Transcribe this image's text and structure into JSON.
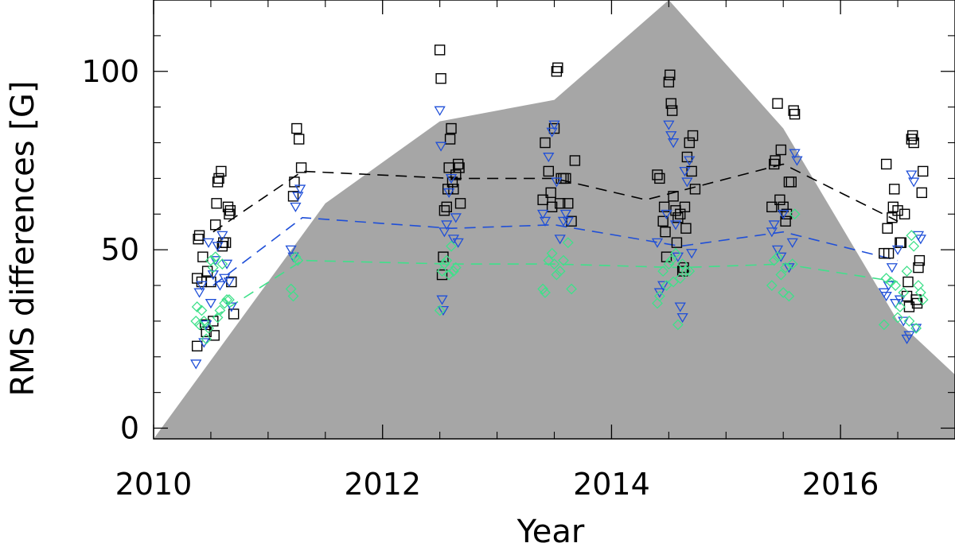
{
  "chart_data": {
    "type": "scatter",
    "title": "",
    "xlabel": "Year",
    "ylabel": "RMS differences [G]",
    "xlim": [
      2010,
      2017.0
    ],
    "ylim": [
      -3,
      120
    ],
    "x_ticks": [
      2010,
      2012,
      2014,
      2016
    ],
    "x_tick_labels": [
      "2010",
      "2012",
      "2014",
      "2016"
    ],
    "x_minor_ticks": [
      2010.5,
      2011,
      2011.5,
      2012.5,
      2013,
      2013.5,
      2014.5,
      2015,
      2015.5,
      2016.5
    ],
    "y_ticks": [
      0,
      50,
      100
    ],
    "y_tick_labels": [
      "0",
      "50",
      "100"
    ],
    "y_minor_ticks": [
      10,
      20,
      30,
      40,
      60,
      70,
      80,
      90,
      110
    ],
    "grid": false,
    "legend": "none",
    "background_area": {
      "color": "#a6a6a6",
      "x": [
        2010.0,
        2011.5,
        2012.5,
        2013.5,
        2014.5,
        2015.5,
        2016.5,
        2017.0
      ],
      "y": [
        -3,
        63,
        86,
        92,
        120,
        84,
        30,
        15
      ]
    },
    "series": [
      {
        "marker": "square",
        "color": "#000000",
        "points": [
          [
            2010.38,
            23
          ],
          [
            2010.38,
            42
          ],
          [
            2010.39,
            53
          ],
          [
            2010.4,
            54
          ],
          [
            2010.42,
            41
          ],
          [
            2010.43,
            48
          ],
          [
            2010.45,
            29
          ],
          [
            2010.46,
            27
          ],
          [
            2010.47,
            44
          ],
          [
            2010.5,
            41
          ],
          [
            2010.52,
            30
          ],
          [
            2010.53,
            26
          ],
          [
            2010.54,
            57
          ],
          [
            2010.55,
            63
          ],
          [
            2010.56,
            69
          ],
          [
            2010.57,
            70
          ],
          [
            2010.59,
            72
          ],
          [
            2010.6,
            51
          ],
          [
            2010.61,
            52
          ],
          [
            2010.63,
            52
          ],
          [
            2010.65,
            62
          ],
          [
            2010.66,
            60
          ],
          [
            2010.67,
            61
          ],
          [
            2010.68,
            41
          ],
          [
            2010.7,
            32
          ],
          [
            2011.22,
            65
          ],
          [
            2011.23,
            69
          ],
          [
            2011.25,
            84
          ],
          [
            2011.27,
            81
          ],
          [
            2011.29,
            73
          ],
          [
            2012.5,
            106
          ],
          [
            2012.51,
            98
          ],
          [
            2012.52,
            43
          ],
          [
            2012.53,
            48
          ],
          [
            2012.54,
            61
          ],
          [
            2012.56,
            62
          ],
          [
            2012.57,
            67
          ],
          [
            2012.58,
            73
          ],
          [
            2012.59,
            81
          ],
          [
            2012.6,
            84
          ],
          [
            2012.61,
            69
          ],
          [
            2012.62,
            67
          ],
          [
            2012.64,
            71
          ],
          [
            2012.66,
            74
          ],
          [
            2012.67,
            73
          ],
          [
            2012.68,
            63
          ],
          [
            2013.4,
            64
          ],
          [
            2013.42,
            80
          ],
          [
            2013.45,
            72
          ],
          [
            2013.47,
            66
          ],
          [
            2013.48,
            62
          ],
          [
            2013.5,
            84
          ],
          [
            2013.52,
            100
          ],
          [
            2013.53,
            101
          ],
          [
            2013.55,
            63
          ],
          [
            2013.56,
            70
          ],
          [
            2013.58,
            70
          ],
          [
            2013.6,
            70
          ],
          [
            2013.62,
            63
          ],
          [
            2013.65,
            58
          ],
          [
            2013.68,
            75
          ],
          [
            2014.4,
            71
          ],
          [
            2014.42,
            70
          ],
          [
            2014.45,
            58
          ],
          [
            2014.46,
            62
          ],
          [
            2014.47,
            55
          ],
          [
            2014.48,
            48
          ],
          [
            2014.5,
            97
          ],
          [
            2014.51,
            99
          ],
          [
            2014.52,
            91
          ],
          [
            2014.53,
            89
          ],
          [
            2014.54,
            65
          ],
          [
            2014.56,
            61
          ],
          [
            2014.57,
            52
          ],
          [
            2014.58,
            59
          ],
          [
            2014.6,
            60
          ],
          [
            2014.62,
            44
          ],
          [
            2014.63,
            45
          ],
          [
            2014.64,
            62
          ],
          [
            2014.65,
            56
          ],
          [
            2014.66,
            76
          ],
          [
            2014.68,
            80
          ],
          [
            2014.7,
            72
          ],
          [
            2014.71,
            82
          ],
          [
            2014.73,
            67
          ],
          [
            2015.4,
            62
          ],
          [
            2015.42,
            74
          ],
          [
            2015.43,
            75
          ],
          [
            2015.45,
            91
          ],
          [
            2015.47,
            64
          ],
          [
            2015.48,
            78
          ],
          [
            2015.5,
            62
          ],
          [
            2015.52,
            58
          ],
          [
            2015.53,
            60
          ],
          [
            2015.55,
            69
          ],
          [
            2015.57,
            69
          ],
          [
            2015.59,
            89
          ],
          [
            2015.6,
            88
          ],
          [
            2016.38,
            49
          ],
          [
            2016.4,
            74
          ],
          [
            2016.41,
            56
          ],
          [
            2016.42,
            49
          ],
          [
            2016.45,
            59
          ],
          [
            2016.46,
            62
          ],
          [
            2016.47,
            67
          ],
          [
            2016.5,
            61
          ],
          [
            2016.52,
            52
          ],
          [
            2016.53,
            52
          ],
          [
            2016.56,
            60
          ],
          [
            2016.58,
            37
          ],
          [
            2016.59,
            41
          ],
          [
            2016.6,
            34
          ],
          [
            2016.62,
            81
          ],
          [
            2016.63,
            82
          ],
          [
            2016.64,
            80
          ],
          [
            2016.66,
            36
          ],
          [
            2016.67,
            35
          ],
          [
            2016.68,
            45
          ],
          [
            2016.69,
            47
          ],
          [
            2016.71,
            66
          ],
          [
            2016.72,
            72
          ]
        ]
      },
      {
        "marker": "triangle-down",
        "color": "#1f4fd8",
        "points": [
          [
            2010.37,
            18
          ],
          [
            2010.4,
            38
          ],
          [
            2010.42,
            40
          ],
          [
            2010.44,
            24
          ],
          [
            2010.46,
            29
          ],
          [
            2010.48,
            52
          ],
          [
            2010.5,
            35
          ],
          [
            2010.52,
            43
          ],
          [
            2010.54,
            47
          ],
          [
            2010.56,
            51
          ],
          [
            2010.58,
            40
          ],
          [
            2010.6,
            54
          ],
          [
            2010.62,
            42
          ],
          [
            2010.64,
            46
          ],
          [
            2010.66,
            41
          ],
          [
            2010.68,
            34
          ],
          [
            2011.2,
            50
          ],
          [
            2011.22,
            48
          ],
          [
            2011.24,
            62
          ],
          [
            2011.26,
            65
          ],
          [
            2011.28,
            67
          ],
          [
            2012.5,
            89
          ],
          [
            2012.51,
            79
          ],
          [
            2012.52,
            36
          ],
          [
            2012.53,
            33
          ],
          [
            2012.54,
            55
          ],
          [
            2012.56,
            57
          ],
          [
            2012.58,
            66
          ],
          [
            2012.6,
            70
          ],
          [
            2012.62,
            53
          ],
          [
            2012.64,
            59
          ],
          [
            2012.66,
            52
          ],
          [
            2013.4,
            60
          ],
          [
            2013.42,
            58
          ],
          [
            2013.45,
            76
          ],
          [
            2013.48,
            83
          ],
          [
            2013.5,
            85
          ],
          [
            2013.52,
            69
          ],
          [
            2013.55,
            53
          ],
          [
            2013.58,
            58
          ],
          [
            2013.6,
            60
          ],
          [
            2013.62,
            58
          ],
          [
            2014.4,
            52
          ],
          [
            2014.42,
            38
          ],
          [
            2014.45,
            40
          ],
          [
            2014.48,
            60
          ],
          [
            2014.5,
            85
          ],
          [
            2014.52,
            82
          ],
          [
            2014.54,
            80
          ],
          [
            2014.56,
            57
          ],
          [
            2014.58,
            48
          ],
          [
            2014.6,
            34
          ],
          [
            2014.62,
            31
          ],
          [
            2014.64,
            72
          ],
          [
            2014.66,
            69
          ],
          [
            2014.68,
            75
          ],
          [
            2014.7,
            49
          ],
          [
            2015.4,
            55
          ],
          [
            2015.42,
            57
          ],
          [
            2015.45,
            50
          ],
          [
            2015.48,
            48
          ],
          [
            2015.5,
            60
          ],
          [
            2015.55,
            45
          ],
          [
            2015.58,
            52
          ],
          [
            2015.6,
            77
          ],
          [
            2015.62,
            75
          ],
          [
            2016.38,
            38
          ],
          [
            2016.4,
            37
          ],
          [
            2016.42,
            40
          ],
          [
            2016.45,
            45
          ],
          [
            2016.48,
            35
          ],
          [
            2016.5,
            50
          ],
          [
            2016.52,
            36
          ],
          [
            2016.55,
            30
          ],
          [
            2016.58,
            25
          ],
          [
            2016.6,
            26
          ],
          [
            2016.62,
            71
          ],
          [
            2016.64,
            69
          ],
          [
            2016.66,
            28
          ],
          [
            2016.68,
            54
          ],
          [
            2016.7,
            53
          ]
        ]
      },
      {
        "marker": "diamond",
        "color": "#3fe08a",
        "points": [
          [
            2010.37,
            30
          ],
          [
            2010.38,
            34
          ],
          [
            2010.4,
            29
          ],
          [
            2010.42,
            33
          ],
          [
            2010.44,
            30
          ],
          [
            2010.46,
            25
          ],
          [
            2010.48,
            28
          ],
          [
            2010.5,
            47
          ],
          [
            2010.52,
            45
          ],
          [
            2010.54,
            48
          ],
          [
            2010.56,
            31
          ],
          [
            2010.58,
            33
          ],
          [
            2010.6,
            46
          ],
          [
            2010.62,
            35
          ],
          [
            2010.64,
            36
          ],
          [
            2010.66,
            36
          ],
          [
            2011.2,
            39
          ],
          [
            2011.22,
            37
          ],
          [
            2011.24,
            48
          ],
          [
            2011.26,
            47
          ],
          [
            2012.5,
            33
          ],
          [
            2012.52,
            44
          ],
          [
            2012.54,
            46
          ],
          [
            2012.56,
            47
          ],
          [
            2012.58,
            43
          ],
          [
            2012.6,
            51
          ],
          [
            2012.62,
            44
          ],
          [
            2012.64,
            45
          ],
          [
            2013.4,
            39
          ],
          [
            2013.42,
            38
          ],
          [
            2013.45,
            47
          ],
          [
            2013.48,
            49
          ],
          [
            2013.5,
            46
          ],
          [
            2013.52,
            43
          ],
          [
            2013.55,
            44
          ],
          [
            2013.58,
            47
          ],
          [
            2013.62,
            52
          ],
          [
            2013.65,
            39
          ],
          [
            2014.4,
            35
          ],
          [
            2014.42,
            37
          ],
          [
            2014.45,
            44
          ],
          [
            2014.48,
            40
          ],
          [
            2014.5,
            46
          ],
          [
            2014.52,
            47
          ],
          [
            2014.54,
            41
          ],
          [
            2014.56,
            49
          ],
          [
            2014.58,
            29
          ],
          [
            2014.6,
            42
          ],
          [
            2014.62,
            46
          ],
          [
            2014.65,
            44
          ],
          [
            2014.68,
            44
          ],
          [
            2015.4,
            40
          ],
          [
            2015.42,
            47
          ],
          [
            2015.45,
            48
          ],
          [
            2015.48,
            43
          ],
          [
            2015.5,
            38
          ],
          [
            2015.52,
            45
          ],
          [
            2015.55,
            37
          ],
          [
            2015.58,
            46
          ],
          [
            2015.6,
            60
          ],
          [
            2016.38,
            29
          ],
          [
            2016.4,
            42
          ],
          [
            2016.44,
            41
          ],
          [
            2016.48,
            40
          ],
          [
            2016.5,
            31
          ],
          [
            2016.52,
            34
          ],
          [
            2016.55,
            38
          ],
          [
            2016.58,
            44
          ],
          [
            2016.6,
            30
          ],
          [
            2016.62,
            54
          ],
          [
            2016.64,
            51
          ],
          [
            2016.66,
            28
          ],
          [
            2016.68,
            40
          ],
          [
            2016.7,
            38
          ],
          [
            2016.72,
            36
          ]
        ]
      }
    ],
    "trend_lines": [
      {
        "color": "#000000",
        "x": [
          2010.52,
          2011.3,
          2012.6,
          2013.5,
          2014.3,
          2015.5,
          2016.5
        ],
        "y": [
          55,
          72,
          70,
          70,
          64,
          74,
          58
        ]
      },
      {
        "color": "#1f4fd8",
        "x": [
          2010.52,
          2011.3,
          2012.6,
          2013.5,
          2014.6,
          2015.5,
          2016.5
        ],
        "y": [
          40,
          59,
          56,
          57,
          51,
          55,
          47
        ]
      },
      {
        "color": "#3fe08a",
        "x": [
          2010.52,
          2011.3,
          2012.6,
          2013.5,
          2014.6,
          2015.5,
          2016.5
        ],
        "y": [
          31,
          47,
          46,
          46,
          45,
          46,
          41
        ]
      }
    ]
  }
}
